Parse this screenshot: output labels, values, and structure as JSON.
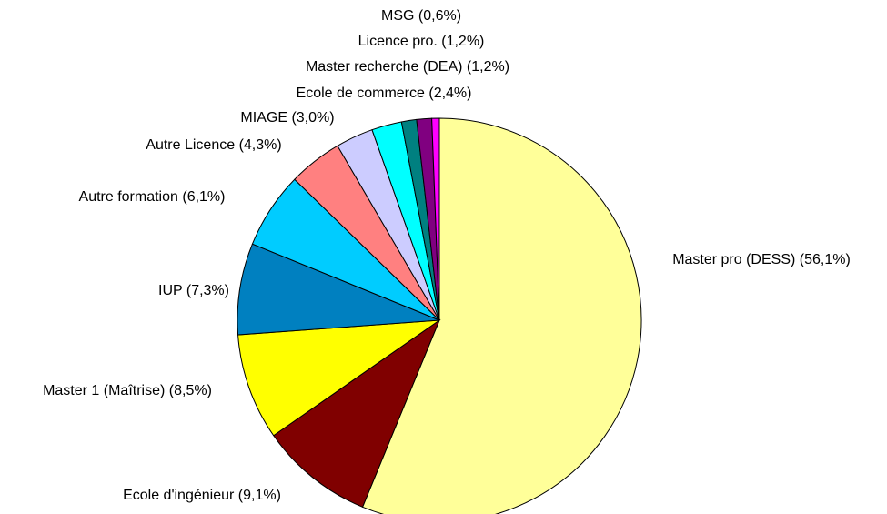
{
  "chart_data": {
    "type": "pie",
    "categories": [
      "Master pro (DESS)",
      "Ecole d'ingénieur",
      "Master 1 (Maîtrise)",
      "IUP",
      "Autre formation",
      "Autre Licence",
      "MIAGE",
      "Ecole de commerce",
      "Master recherche (DEA)",
      "Licence pro.",
      "MSG"
    ],
    "values": [
      56.1,
      9.1,
      8.5,
      7.3,
      6.1,
      4.3,
      3.0,
      2.4,
      1.2,
      1.2,
      0.6
    ],
    "value_labels": [
      "(56,1%)",
      "(9,1%)",
      "(8,5%)",
      "(7,3%)",
      "(6,1%)",
      "(4,3%)",
      "(3,0%)",
      "(2,4%)",
      "(1,2%)",
      "(1,2%)",
      "(0,6%)"
    ],
    "colors": [
      "#FFFF99",
      "#800000",
      "#FFFF00",
      "#0080C0",
      "#00CCFF",
      "#FF8080",
      "#CCCCFF",
      "#00FFFF",
      "#008080",
      "#800080",
      "#FF00FF"
    ]
  }
}
